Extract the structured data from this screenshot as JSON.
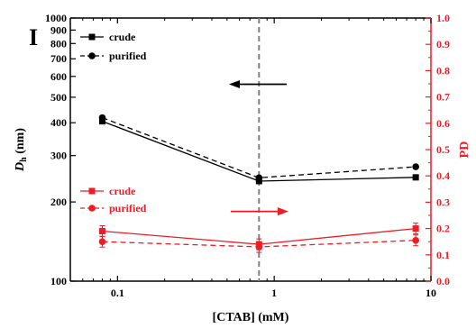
{
  "panel_label": "I",
  "colors": {
    "left": "#000000",
    "right": "#ee1c24",
    "vline": "#808080"
  },
  "chart_data": {
    "type": "line",
    "xlabel": "[CTAB] (mM)",
    "ylabel_left": "D",
    "ylabel_left_sub": "h",
    "ylabel_left_unit": " (nm)",
    "ylabel_right": "PD",
    "x_scale": "log",
    "xlim": [
      0.05,
      10
    ],
    "x_ticks": [
      0.1,
      1,
      10
    ],
    "x_tick_labels": [
      "0.1",
      "1",
      "10"
    ],
    "y_left_scale": "log",
    "ylim_left": [
      100,
      1000
    ],
    "y_left_ticks": [
      100,
      200,
      300,
      400,
      500,
      600,
      700,
      800,
      900,
      1000
    ],
    "y_left_tick_labels": [
      "100",
      "200",
      "300",
      "400",
      "500",
      "600",
      "700",
      "800",
      "900",
      "1000"
    ],
    "ylim_right": [
      0.0,
      1.0
    ],
    "y_right_ticks": [
      0.0,
      0.1,
      0.2,
      0.3,
      0.4,
      0.5,
      0.6,
      0.7,
      0.8,
      0.9,
      1.0
    ],
    "y_right_tick_labels": [
      "0.0",
      "0.1",
      "0.2",
      "0.3",
      "0.4",
      "0.5",
      "0.6",
      "0.7",
      "0.8",
      "0.9",
      "1.0"
    ],
    "vline_x": 0.8,
    "legend_top": {
      "placement": "top-left",
      "entries": [
        "crude",
        "purified"
      ]
    },
    "legend_bottom": {
      "placement": "center-left",
      "entries": [
        "crude",
        "purified"
      ]
    },
    "series": [
      {
        "name": "crude",
        "axis": "left",
        "marker": "square",
        "dash": "solid",
        "x": [
          0.08,
          0.8,
          8
        ],
        "y": [
          405,
          240,
          248
        ]
      },
      {
        "name": "purified",
        "axis": "left",
        "marker": "circle",
        "dash": "dashed",
        "x": [
          0.08,
          0.8,
          8
        ],
        "y": [
          418,
          247,
          272
        ]
      },
      {
        "name": "crude",
        "axis": "right",
        "marker": "square",
        "dash": "solid",
        "x": [
          0.08,
          0.8,
          8
        ],
        "y": [
          0.19,
          0.14,
          0.2
        ]
      },
      {
        "name": "purified",
        "axis": "right",
        "marker": "circle",
        "dash": "dashed",
        "x": [
          0.08,
          0.8,
          8
        ],
        "y": [
          0.15,
          0.13,
          0.155
        ]
      }
    ]
  }
}
